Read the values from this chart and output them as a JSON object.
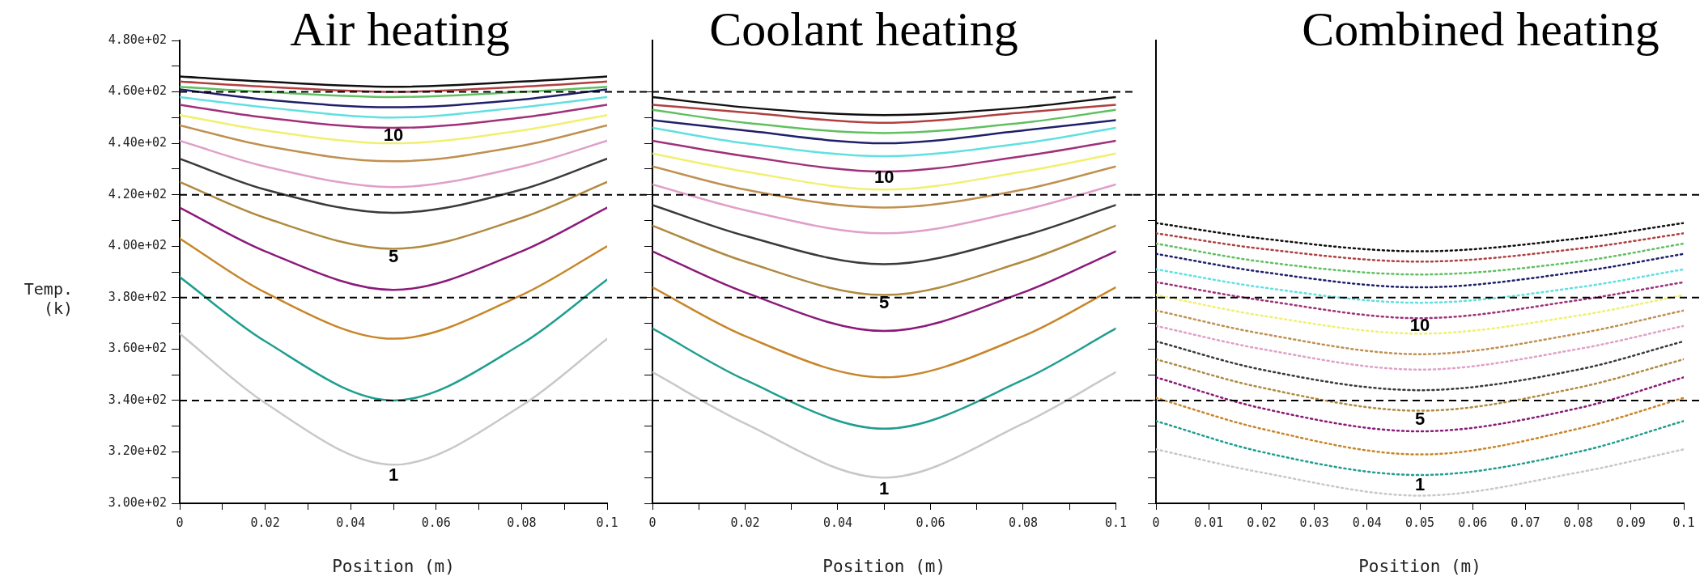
{
  "chart_data": [
    {
      "type": "line",
      "title": "Air heating",
      "xlabel": "Position (m)",
      "ylabel": "Temp. (k)",
      "x": [
        0,
        0.02,
        0.05,
        0.08,
        0.1
      ],
      "xlim": [
        0,
        0.1
      ],
      "xticks": [
        0,
        {
          "value": 0.01,
          "label": null
        },
        0.02,
        {
          "value": 0.03,
          "label": null
        },
        0.04,
        {
          "value": 0.05,
          "label": null
        },
        0.06,
        {
          "value": 0.07,
          "label": null
        },
        0.08,
        {
          "value": 0.09,
          "label": null
        },
        0.1
      ],
      "ylim": [
        300,
        480
      ],
      "yticks": [
        {
          "value": 300,
          "label": "3.00e+02"
        },
        {
          "value": 310,
          "label": null
        },
        {
          "value": 320,
          "label": "3.20e+02"
        },
        {
          "value": 330,
          "label": null
        },
        {
          "value": 340,
          "label": "3.40e+02"
        },
        {
          "value": 350,
          "label": null
        },
        {
          "value": 360,
          "label": "3.60e+02"
        },
        {
          "value": 370,
          "label": null
        },
        {
          "value": 380,
          "label": "3.80e+02"
        },
        {
          "value": 390,
          "label": null
        },
        {
          "value": 400,
          "label": "4.00e+02"
        },
        {
          "value": 410,
          "label": null
        },
        {
          "value": 420,
          "label": "4.20e+02"
        },
        {
          "value": 430,
          "label": null
        },
        {
          "value": 440,
          "label": "4.40e+02"
        },
        {
          "value": 450,
          "label": null
        },
        {
          "value": 460,
          "label": "4.60e+02"
        },
        {
          "value": 470,
          "label": null
        },
        {
          "value": 480,
          "label": "4.80e+02"
        }
      ],
      "series": [
        {
          "color": "#c8c8c8",
          "values": [
            366,
            339,
            315,
            338,
            364
          ]
        },
        {
          "color": "#1f9e8f",
          "values": [
            388,
            363,
            340,
            362,
            387
          ]
        },
        {
          "color": "#c8862a",
          "values": [
            403,
            382,
            364,
            381,
            400
          ]
        },
        {
          "color": "#8b1a7a",
          "values": [
            415,
            398,
            383,
            398,
            415
          ]
        },
        {
          "color": "#b08a40",
          "values": [
            425,
            411,
            399,
            411,
            425
          ]
        },
        {
          "color": "#3a3a3a",
          "values": [
            434,
            422,
            413,
            422,
            434
          ]
        },
        {
          "color": "#e0a0c8",
          "values": [
            441,
            431,
            423,
            431,
            441
          ]
        },
        {
          "color": "#c09050",
          "values": [
            447,
            439,
            433,
            439,
            447
          ]
        },
        {
          "color": "#f0f070",
          "values": [
            451,
            445,
            440,
            445,
            451
          ]
        },
        {
          "color": "#a0307a",
          "values": [
            455,
            450,
            446,
            450,
            455
          ]
        },
        {
          "color": "#60e0e0",
          "values": [
            458,
            454,
            450,
            454,
            458
          ]
        },
        {
          "color": "#20206a",
          "values": [
            461,
            457,
            454,
            457,
            461
          ]
        },
        {
          "color": "#60c060",
          "values": [
            462,
            460,
            458,
            460,
            462
          ]
        },
        {
          "color": "#b04040",
          "values": [
            464,
            462,
            460,
            462,
            464
          ]
        },
        {
          "color": "#101010",
          "values": [
            466,
            464,
            462,
            464,
            466
          ]
        }
      ],
      "ref_lines": [
        {
          "axis": "y",
          "value": 460,
          "color": "#000000",
          "line_style": "dashed"
        },
        {
          "axis": "y",
          "value": 420,
          "color": "#000000",
          "line_style": "dashed"
        },
        {
          "axis": "y",
          "value": 380,
          "color": "#000000",
          "line_style": "dashed"
        },
        {
          "axis": "y",
          "value": 340,
          "color": "#000000",
          "line_style": "dashed"
        }
      ],
      "annotations": [
        "10",
        "5",
        "1"
      ]
    },
    {
      "type": "line",
      "title": "Coolant heating",
      "xlabel": "Position (m)",
      "tick_labels": "x",
      "x": [
        0,
        0.02,
        0.05,
        0.08,
        0.1
      ],
      "xlim": [
        0,
        0.1
      ],
      "xticks": [
        0,
        {
          "value": 0.01,
          "label": null
        },
        0.02,
        {
          "value": 0.03,
          "label": null
        },
        0.04,
        {
          "value": 0.05,
          "label": null
        },
        0.06,
        {
          "value": 0.07,
          "label": null
        },
        0.08,
        {
          "value": 0.09,
          "label": null
        },
        0.1
      ],
      "ylim": [
        300,
        480
      ],
      "yticks": [
        {
          "value": 300,
          "label": null
        },
        {
          "value": 310,
          "label": null
        },
        {
          "value": 320,
          "label": null
        },
        {
          "value": 330,
          "label": null
        },
        {
          "value": 340,
          "label": null
        },
        {
          "value": 350,
          "label": null
        },
        {
          "value": 360,
          "label": null
        },
        {
          "value": 370,
          "label": null
        },
        {
          "value": 380,
          "label": null
        },
        {
          "value": 390,
          "label": null
        },
        {
          "value": 400,
          "label": null
        },
        {
          "value": 410,
          "label": null
        },
        {
          "value": 420,
          "label": null
        },
        {
          "value": 430,
          "label": null
        },
        {
          "value": 440,
          "label": null
        },
        {
          "value": 450,
          "label": null
        },
        {
          "value": 460,
          "label": null
        }
      ],
      "series": [
        {
          "color": "#c8c8c8",
          "values": [
            351,
            331,
            310,
            331,
            351
          ]
        },
        {
          "color": "#1f9e8f",
          "values": [
            368,
            348,
            329,
            348,
            368
          ]
        },
        {
          "color": "#c8862a",
          "values": [
            384,
            365,
            349,
            365,
            384
          ]
        },
        {
          "color": "#8b1a7a",
          "values": [
            398,
            382,
            367,
            382,
            398
          ]
        },
        {
          "color": "#b08a40",
          "values": [
            408,
            394,
            381,
            394,
            408
          ]
        },
        {
          "color": "#3a3a3a",
          "values": [
            416,
            404,
            393,
            404,
            416
          ]
        },
        {
          "color": "#e0a0c8",
          "values": [
            424,
            414,
            405,
            414,
            424
          ]
        },
        {
          "color": "#c09050",
          "values": [
            431,
            422,
            415,
            422,
            431
          ]
        },
        {
          "color": "#f0f070",
          "values": [
            436,
            429,
            422,
            429,
            436
          ]
        },
        {
          "color": "#a0307a",
          "values": [
            441,
            435,
            429,
            435,
            441
          ]
        },
        {
          "color": "#60e0e0",
          "values": [
            446,
            440,
            435,
            440,
            446
          ]
        },
        {
          "color": "#20206a",
          "values": [
            449,
            445,
            440,
            445,
            449
          ]
        },
        {
          "color": "#60c060",
          "values": [
            453,
            448,
            444,
            448,
            453
          ]
        },
        {
          "color": "#b04040",
          "values": [
            455,
            452,
            448,
            452,
            455
          ]
        },
        {
          "color": "#101010",
          "values": [
            458,
            454,
            451,
            454,
            458
          ]
        }
      ],
      "ref_lines": [
        {
          "axis": "y",
          "value": 460,
          "color": "#000000",
          "line_style": "dashed"
        },
        {
          "axis": "y",
          "value": 420,
          "color": "#000000",
          "line_style": "dashed"
        },
        {
          "axis": "y",
          "value": 380,
          "color": "#000000",
          "line_style": "dashed"
        },
        {
          "axis": "y",
          "value": 340,
          "color": "#000000",
          "line_style": "dashed"
        }
      ],
      "annotations": [
        "10",
        "5",
        "1"
      ]
    },
    {
      "type": "line",
      "title": "Combined heating",
      "xlabel": "Position (m)",
      "tick_labels": "x",
      "line_style": "dotted",
      "x": [
        0,
        0.02,
        0.05,
        0.08,
        0.1
      ],
      "xlim": [
        0,
        0.1
      ],
      "xticks": [
        0,
        0.01,
        0.02,
        0.03,
        0.04,
        0.05,
        0.06,
        0.07,
        0.08,
        0.09,
        0.1
      ],
      "ylim": [
        300,
        480
      ],
      "yticks": [
        {
          "value": 300,
          "label": null
        },
        {
          "value": 310,
          "label": null
        },
        {
          "value": 320,
          "label": null
        },
        {
          "value": 330,
          "label": null
        },
        {
          "value": 340,
          "label": null
        },
        {
          "value": 350,
          "label": null
        },
        {
          "value": 360,
          "label": null
        },
        {
          "value": 370,
          "label": null
        },
        {
          "value": 380,
          "label": null
        },
        {
          "value": 390,
          "label": null
        },
        {
          "value": 400,
          "label": null
        },
        {
          "value": 410,
          "label": null
        },
        {
          "value": 420,
          "label": null
        }
      ],
      "series": [
        {
          "color": "#c8c8c8",
          "values": [
            321,
            312,
            303,
            312,
            321
          ]
        },
        {
          "color": "#1f9e8f",
          "values": [
            332,
            320,
            311,
            320,
            332
          ]
        },
        {
          "color": "#c8862a",
          "values": [
            341,
            329,
            319,
            329,
            341
          ]
        },
        {
          "color": "#8b1a7a",
          "values": [
            349,
            337,
            328,
            337,
            349
          ]
        },
        {
          "color": "#b08a40",
          "values": [
            356,
            345,
            336,
            345,
            356
          ]
        },
        {
          "color": "#3a3a3a",
          "values": [
            363,
            352,
            344,
            352,
            363
          ]
        },
        {
          "color": "#e0a0c8",
          "values": [
            369,
            360,
            352,
            360,
            369
          ]
        },
        {
          "color": "#c09050",
          "values": [
            375,
            366,
            358,
            366,
            375
          ]
        },
        {
          "color": "#f0f070",
          "values": [
            381,
            373,
            366,
            373,
            381
          ]
        },
        {
          "color": "#a0307a",
          "values": [
            386,
            379,
            372,
            379,
            386
          ]
        },
        {
          "color": "#60e0e0",
          "values": [
            391,
            384,
            378,
            384,
            391
          ]
        },
        {
          "color": "#20206a",
          "values": [
            397,
            390,
            384,
            390,
            397
          ]
        },
        {
          "color": "#60c060",
          "values": [
            401,
            394,
            389,
            394,
            401
          ]
        },
        {
          "color": "#b04040",
          "values": [
            405,
            399,
            394,
            399,
            405
          ]
        },
        {
          "color": "#101010",
          "values": [
            409,
            403,
            398,
            403,
            409
          ]
        }
      ],
      "ref_lines": [
        {
          "axis": "y",
          "value": 420,
          "color": "#000000",
          "line_style": "dashed"
        },
        {
          "axis": "y",
          "value": 380,
          "color": "#000000",
          "line_style": "dashed"
        },
        {
          "axis": "y",
          "value": 340,
          "color": "#000000",
          "line_style": "dashed"
        }
      ],
      "annotations": [
        "10",
        "5",
        "1"
      ]
    }
  ]
}
